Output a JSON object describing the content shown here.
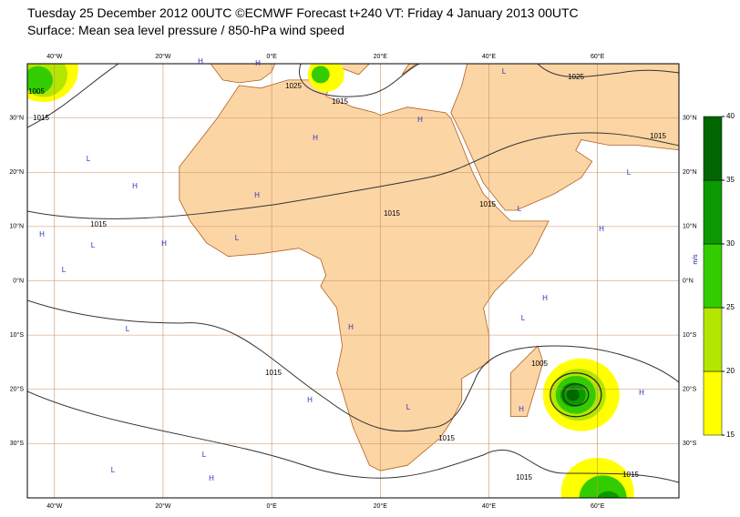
{
  "header": {
    "title": "Tuesday 25 December 2012 00UTC ©ECMWF Forecast t+240 VT: Friday 4 January 2013 00UTC",
    "subtitle": "Surface: Mean sea level pressure / 850-hPa wind speed"
  },
  "map": {
    "xlim": [
      -45,
      75
    ],
    "ylim": [
      -40,
      40
    ],
    "lon_ticks": [
      {
        "value": -40,
        "label": "40°W"
      },
      {
        "value": -20,
        "label": "20°W"
      },
      {
        "value": 0,
        "label": "0°E"
      },
      {
        "value": 20,
        "label": "20°E"
      },
      {
        "value": 40,
        "label": "40°E"
      },
      {
        "value": 60,
        "label": "60°E"
      }
    ],
    "lat_ticks": [
      {
        "value": 30,
        "label": "30°N"
      },
      {
        "value": 20,
        "label": "20°N"
      },
      {
        "value": 10,
        "label": "10°N"
      },
      {
        "value": 0,
        "label": "0°N"
      },
      {
        "value": -10,
        "label": "10°S"
      },
      {
        "value": -20,
        "label": "20°S"
      },
      {
        "value": -30,
        "label": "30°S"
      }
    ],
    "isobar_labels": [
      "1005",
      "1015",
      "1025",
      "1015",
      "1015",
      "1015",
      "1015",
      "1015",
      "1015",
      "1025",
      "1015",
      "1015",
      "1015",
      "1005"
    ],
    "pressure_centres": [
      "H",
      "H",
      "L",
      "H",
      "H",
      "L",
      "L",
      "H",
      "L",
      "H",
      "L",
      "H",
      "H",
      "L",
      "H",
      "L",
      "L",
      "H",
      "H",
      "L",
      "H",
      "L",
      "H",
      "L",
      "H",
      "H",
      "L"
    ]
  },
  "colorbar": {
    "unit": "m/s",
    "lim": [
      15,
      40
    ],
    "ticks": [
      15,
      20,
      25,
      30,
      35,
      40
    ],
    "colors": [
      "#ffff00",
      "#b3e600",
      "#33cc00",
      "#0a9900",
      "#006600"
    ]
  }
}
